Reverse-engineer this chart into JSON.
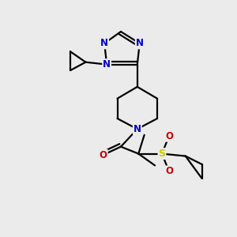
{
  "bg_color": "#ebebeb",
  "atom_colors": {
    "C": "#000000",
    "N": "#0000cc",
    "O": "#cc0000",
    "S": "#cccc00"
  },
  "bond_color": "#000000",
  "bond_width": 1.6,
  "figsize": [
    3.0,
    3.0
  ],
  "dpi": 100
}
